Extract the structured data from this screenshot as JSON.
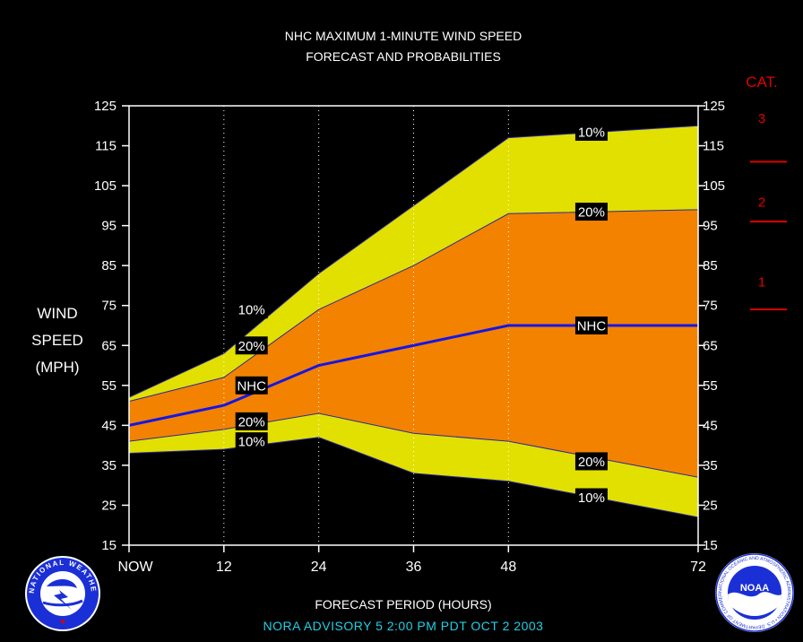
{
  "chart_data": {
    "type": "area",
    "title": "NHC MAXIMUM 1-MINUTE WIND SPEED",
    "subtitle": "FORECAST AND PROBABILITIES",
    "xlabel": "FORECAST PERIOD (HOURS)",
    "ylabel_lines": [
      "WIND",
      "SPEED",
      "(MPH)"
    ],
    "x_tick_labels": [
      {
        "x": 0,
        "label": "NOW"
      },
      {
        "x": 12,
        "label": "12"
      },
      {
        "x": 24,
        "label": "24"
      },
      {
        "x": 36,
        "label": "36"
      },
      {
        "x": 48,
        "label": "48"
      },
      {
        "x": 72,
        "label": "72"
      }
    ],
    "y_ticks": [
      15,
      25,
      35,
      45,
      55,
      65,
      75,
      85,
      95,
      105,
      115,
      125
    ],
    "xlim": [
      0,
      72
    ],
    "ylim": [
      15,
      125
    ],
    "vertical_dotted_gridlines_at": [
      12,
      24,
      36,
      48
    ],
    "x": [
      0,
      12,
      24,
      36,
      48,
      72
    ],
    "series": [
      {
        "name": "10%",
        "values": [
          52,
          63,
          83,
          100,
          117,
          120
        ]
      },
      {
        "name": "20%",
        "values": [
          51,
          57,
          74,
          85,
          98,
          99
        ]
      },
      {
        "name": "NHC",
        "values": [
          45,
          50,
          60,
          65,
          70,
          70
        ]
      },
      {
        "name": "20%",
        "values": [
          41,
          44,
          48,
          43,
          41,
          32
        ]
      },
      {
        "name": "10%",
        "values": [
          38,
          39,
          42,
          33,
          31,
          22
        ]
      }
    ],
    "series_labels": [
      {
        "text": "10%",
        "x": 15.5,
        "y": 74
      },
      {
        "text": "20%",
        "x": 15.5,
        "y": 65
      },
      {
        "text": "NHC",
        "x": 15.5,
        "y": 55
      },
      {
        "text": "20%",
        "x": 15.5,
        "y": 46
      },
      {
        "text": "10%",
        "x": 15.5,
        "y": 41
      },
      {
        "text": "10%",
        "x": 58.5,
        "y": 118.5
      },
      {
        "text": "20%",
        "x": 58.5,
        "y": 98.5
      },
      {
        "text": "NHC",
        "x": 58.5,
        "y": 70
      },
      {
        "text": "20%",
        "x": 58.5,
        "y": 36
      },
      {
        "text": "10%",
        "x": 58.5,
        "y": 27
      }
    ],
    "colors": {
      "outer_band": "#e2e000",
      "inner_band": "#f28200",
      "nhc_line": "#1515e6",
      "text": "#ffffff",
      "category": "#e00000",
      "footer": "#21d0e6"
    },
    "category_scale": {
      "title": "CAT.",
      "labels": [
        {
          "label": "3",
          "y": 125
        },
        {
          "label": "2",
          "y": 104
        },
        {
          "label": "1",
          "y": 84
        }
      ],
      "thresholds": [
        111,
        96,
        74
      ]
    }
  },
  "footer": {
    "text": "NORA   ADVISORY  5 2:00  PM  PDT  OCT  2  2003"
  },
  "logos": {
    "nws": "NATIONAL WEATHER SERVICE",
    "noaa": "NOAA",
    "noaa_ring": "NATIONAL OCEANIC AND ATMOSPHERIC ADMINISTRATION • U.S. DEPARTMENT OF COMMERCE"
  }
}
